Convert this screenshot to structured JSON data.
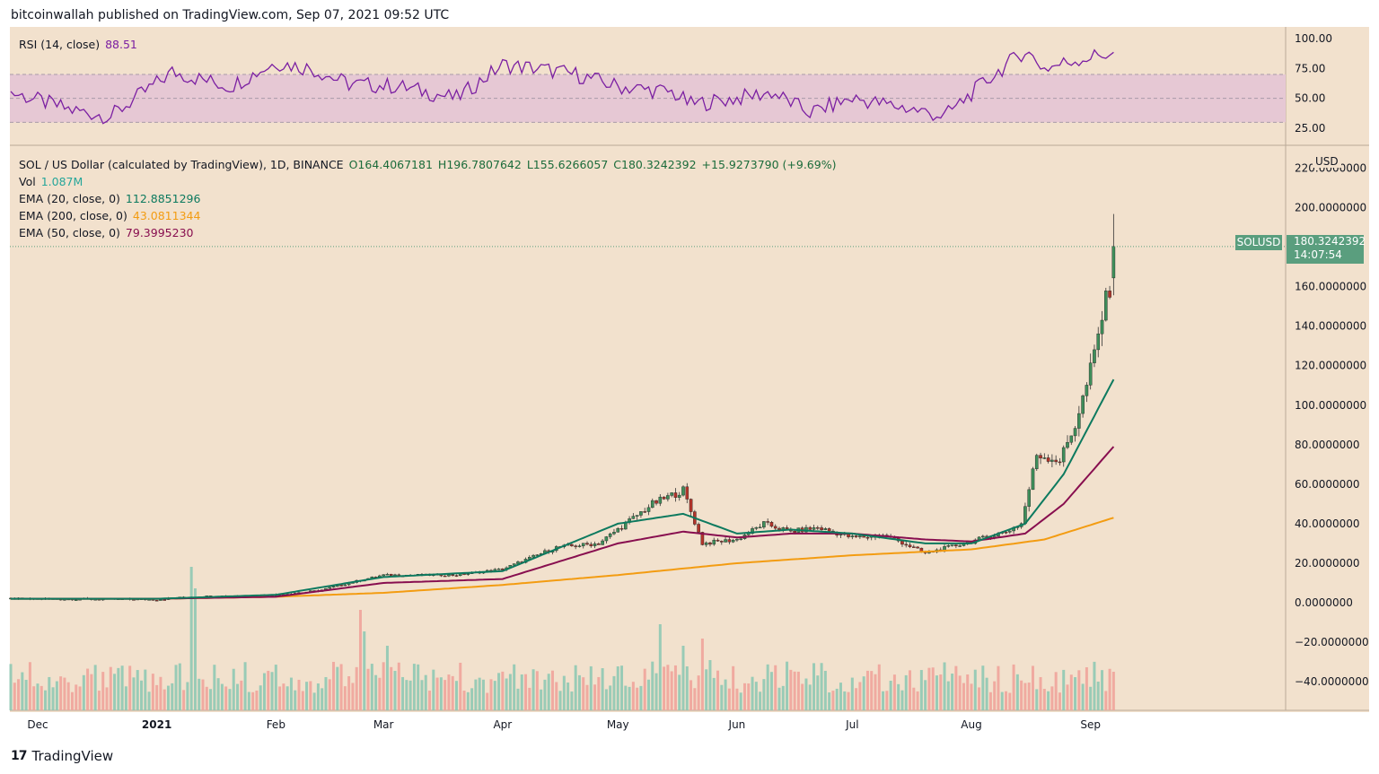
{
  "header": {
    "published": "bitcoinwallah published on TradingView.com, Sep 07, 2021 09:52 UTC"
  },
  "rsi": {
    "label": "RSI (14, close)",
    "value": "88.51",
    "axis_labels": [
      "100.00",
      "75.00",
      "50.00",
      "25.00"
    ]
  },
  "main": {
    "symbol_line": "SOL / US Dollar (calculated by TradingView), 1D, BINANCE",
    "open": "O164.4067181",
    "high": "H196.7807642",
    "low": "L155.6266057",
    "close": "C180.3242392",
    "change": "+15.9273790 (+9.69%)",
    "vol_label": "Vol",
    "vol_value": "1.087M",
    "ema20_label": "EMA (20, close, 0)",
    "ema20_value": "112.8851296",
    "ema200_label": "EMA (200, close, 0)",
    "ema200_value": "43.0811344",
    "ema50_label": "EMA (50, close, 0)",
    "ema50_value": "79.3995230",
    "currency": "USD",
    "symbol_tag": "SOLUSD",
    "last_price": "180.3242392",
    "countdown": "14:07:54"
  },
  "brand": {
    "logo": "17",
    "name": "TradingView"
  },
  "colors": {
    "background": "#f2e1cd",
    "up": "#26a69a",
    "down": "#ef5350",
    "rsi_line": "#7b1fa2",
    "rsi_band": "#e6c8d4",
    "ema20": "#0d7a5f",
    "ema50": "#880e4f",
    "ema200": "#f39c12"
  },
  "chart_data": {
    "type": "candlestick",
    "price_axis": {
      "min": -40,
      "max": 220,
      "ticks": [
        "220.0000000",
        "200.0000000",
        "160.0000000",
        "140.0000000",
        "120.0000000",
        "100.0000000",
        "80.0000000",
        "60.0000000",
        "40.0000000",
        "20.0000000",
        "0.0000000",
        "−20.0000000",
        "−40.0000000"
      ]
    },
    "x_axis": {
      "labels": [
        "Dec",
        "2021",
        "Feb",
        "Mar",
        "Apr",
        "May",
        "Jun",
        "Jul",
        "Aug",
        "Sep"
      ]
    },
    "rsi_axis": {
      "min": 25,
      "max": 100,
      "band": [
        30,
        70
      ]
    },
    "price_anchors": {
      "x": [
        "Nov 24",
        "Jan 01",
        "Jan 10",
        "Feb 01",
        "Feb 12",
        "Feb 20",
        "Mar 01",
        "Mar 20",
        "Apr 01",
        "Apr 15",
        "Apr 26",
        "May 10",
        "May 18",
        "May 23",
        "Jun 01",
        "Jun 08",
        "Jun 15",
        "Jun 22",
        "Jul 01",
        "Jul 10",
        "Jul 20",
        "Aug 01",
        "Aug 10",
        "Aug 14",
        "Aug 18",
        "Aug 24",
        "Aug 28",
        "Aug 31",
        "Sep 02",
        "Sep 04",
        "Sep 06",
        "Sep 07"
      ],
      "y": [
        2,
        1.6,
        3,
        4,
        6,
        10,
        14,
        14,
        17,
        28,
        30,
        50,
        57,
        30,
        32,
        40,
        36,
        38,
        33,
        34,
        25,
        31,
        36,
        40,
        75,
        72,
        90,
        110,
        126,
        145,
        160,
        180
      ]
    },
    "ema20": {
      "x": [
        "Nov 24",
        "Jan 01",
        "Feb 01",
        "Mar 01",
        "Apr 01",
        "May 01",
        "May 18",
        "Jun 01",
        "Jun 15",
        "Jul 01",
        "Jul 20",
        "Aug 01",
        "Aug 15",
        "Aug 25",
        "Sep 07"
      ],
      "y": [
        2,
        2,
        4,
        13,
        16,
        40,
        45,
        35,
        37,
        35,
        30,
        30,
        40,
        65,
        113
      ]
    },
    "ema50": {
      "x": [
        "Nov 24",
        "Jan 01",
        "Feb 01",
        "Mar 01",
        "Apr 01",
        "May 01",
        "May 18",
        "Jun 01",
        "Jun 15",
        "Jul 01",
        "Jul 20",
        "Aug 01",
        "Aug 15",
        "Aug 25",
        "Sep 07"
      ],
      "y": [
        2,
        2,
        3,
        10,
        12,
        30,
        36,
        33,
        35,
        35,
        32,
        31,
        35,
        50,
        79
      ]
    },
    "ema200": {
      "x": [
        "Nov 24",
        "Jan 01",
        "Feb 01",
        "Mar 01",
        "Apr 01",
        "May 01",
        "Jun 01",
        "Jul 01",
        "Aug 01",
        "Aug 20",
        "Sep 07"
      ],
      "y": [
        2,
        2,
        3,
        5,
        9,
        14,
        20,
        24,
        27,
        32,
        43
      ]
    },
    "rsi_series": {
      "x": [
        "Nov 24",
        "Dec 10",
        "Dec 20",
        "Jan 05",
        "Jan 20",
        "Feb 01",
        "Feb 10",
        "Feb 20",
        "Mar 05",
        "Mar 20",
        "Apr 01",
        "Apr 10",
        "Apr 20",
        "May 01",
        "May 15",
        "May 20",
        "Jun 01",
        "Jun 10",
        "Jun 20",
        "Jul 01",
        "Jul 15",
        "Jul 25",
        "Aug 05",
        "Aug 15",
        "Aug 20",
        "Aug 28",
        "Sep 07"
      ],
      "y": [
        55,
        40,
        35,
        72,
        60,
        80,
        75,
        62,
        60,
        50,
        78,
        75,
        70,
        60,
        55,
        45,
        50,
        55,
        38,
        50,
        42,
        35,
        65,
        90,
        75,
        82,
        88.51
      ]
    },
    "volume_axis_max_M": 15
  }
}
